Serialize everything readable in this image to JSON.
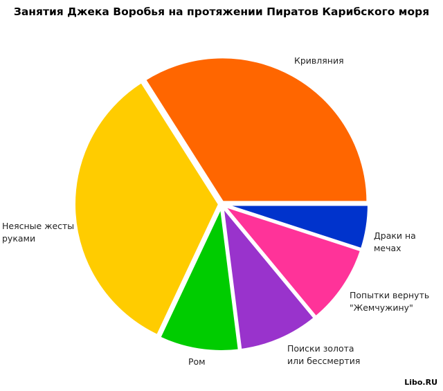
{
  "chart_data": {
    "type": "pie",
    "title": "Занятия Джека Воробья на протяжении Пиратов Карибского моря",
    "categories": [
      "Кривляния",
      "Неясные жесты руками",
      "Ром",
      "Поиски золота или бессмертия",
      "Попытки вернуть \"Жемчужину\"",
      "Драки на мечах"
    ],
    "values": [
      34,
      34,
      9,
      9,
      9,
      5
    ],
    "colors": [
      "#ff6600",
      "#ffcc00",
      "#00cc00",
      "#9933cc",
      "#ff3399",
      "#0033cc"
    ],
    "watermark": "Libo.RU"
  }
}
